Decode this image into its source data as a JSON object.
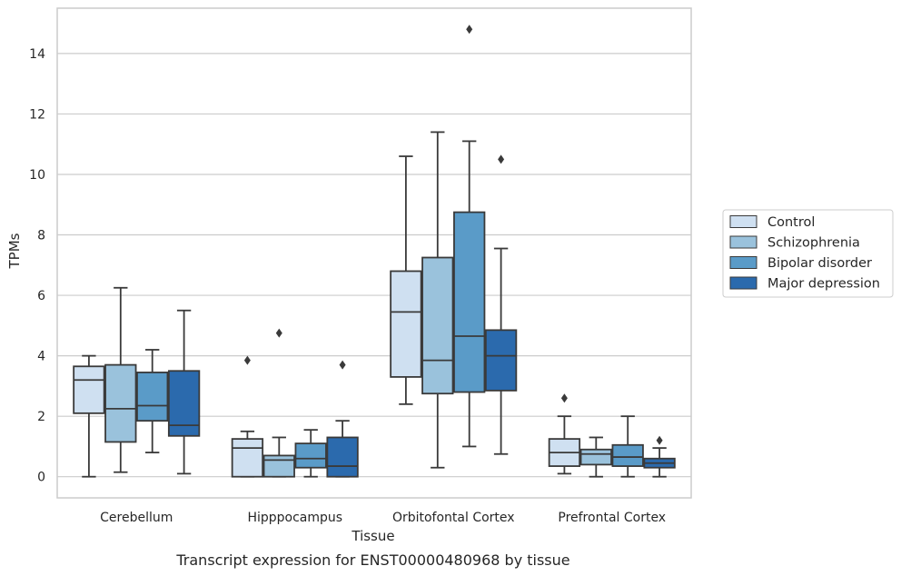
{
  "chart_data": {
    "type": "boxplot",
    "title": "",
    "caption": "Transcript expression for ENST00000480968 by tissue",
    "xlabel": "Tissue",
    "ylabel": "TPMs",
    "ylim": [
      -0.7,
      15.5
    ],
    "yticks": [
      0,
      2,
      4,
      6,
      8,
      10,
      12,
      14
    ],
    "grid": "horizontal",
    "legend_position": "right",
    "categories": [
      "Cerebellum",
      "Hipppocampus",
      "Orbitofontal Cortex",
      "Prefrontal Cortex"
    ],
    "series": [
      {
        "name": "Control",
        "color": "#cfe0f1",
        "boxes": [
          {
            "min": 0.0,
            "q1": 2.1,
            "median": 3.2,
            "q3": 3.65,
            "max": 4.0,
            "outliers": []
          },
          {
            "min": 0.0,
            "q1": 0.0,
            "median": 0.95,
            "q3": 1.25,
            "max": 1.5,
            "outliers": [
              3.85
            ]
          },
          {
            "min": 2.4,
            "q1": 3.3,
            "median": 5.45,
            "q3": 6.8,
            "max": 10.6,
            "outliers": []
          },
          {
            "min": 0.1,
            "q1": 0.35,
            "median": 0.8,
            "q3": 1.25,
            "max": 2.0,
            "outliers": [
              2.6
            ]
          }
        ]
      },
      {
        "name": "Schizophrenia",
        "color": "#9ac2dc",
        "boxes": [
          {
            "min": 0.15,
            "q1": 1.15,
            "median": 2.25,
            "q3": 3.7,
            "max": 6.25,
            "outliers": []
          },
          {
            "min": 0.0,
            "q1": 0.0,
            "median": 0.55,
            "q3": 0.7,
            "max": 1.3,
            "outliers": [
              4.75
            ]
          },
          {
            "min": 0.3,
            "q1": 2.75,
            "median": 3.85,
            "q3": 7.25,
            "max": 11.4,
            "outliers": []
          },
          {
            "min": 0.0,
            "q1": 0.4,
            "median": 0.75,
            "q3": 0.9,
            "max": 1.3,
            "outliers": []
          }
        ]
      },
      {
        "name": "Bipolar disorder",
        "color": "#5a9bc8",
        "boxes": [
          {
            "min": 0.8,
            "q1": 1.85,
            "median": 2.35,
            "q3": 3.45,
            "max": 4.2,
            "outliers": []
          },
          {
            "min": 0.0,
            "q1": 0.3,
            "median": 0.6,
            "q3": 1.1,
            "max": 1.55,
            "outliers": []
          },
          {
            "min": 1.0,
            "q1": 2.8,
            "median": 4.65,
            "q3": 8.75,
            "max": 11.1,
            "outliers": [
              14.8
            ]
          },
          {
            "min": 0.0,
            "q1": 0.35,
            "median": 0.65,
            "q3": 1.05,
            "max": 2.0,
            "outliers": []
          }
        ]
      },
      {
        "name": "Major depression",
        "color": "#2b6aad",
        "boxes": [
          {
            "min": 0.1,
            "q1": 1.35,
            "median": 1.7,
            "q3": 3.5,
            "max": 5.5,
            "outliers": []
          },
          {
            "min": 0.0,
            "q1": 0.0,
            "median": 0.35,
            "q3": 1.3,
            "max": 1.85,
            "outliers": [
              3.7
            ]
          },
          {
            "min": 0.75,
            "q1": 2.85,
            "median": 4.0,
            "q3": 4.85,
            "max": 7.55,
            "outliers": [
              10.5
            ]
          },
          {
            "min": 0.0,
            "q1": 0.3,
            "median": 0.45,
            "q3": 0.6,
            "max": 0.95,
            "outliers": [
              1.2
            ]
          }
        ]
      }
    ]
  }
}
